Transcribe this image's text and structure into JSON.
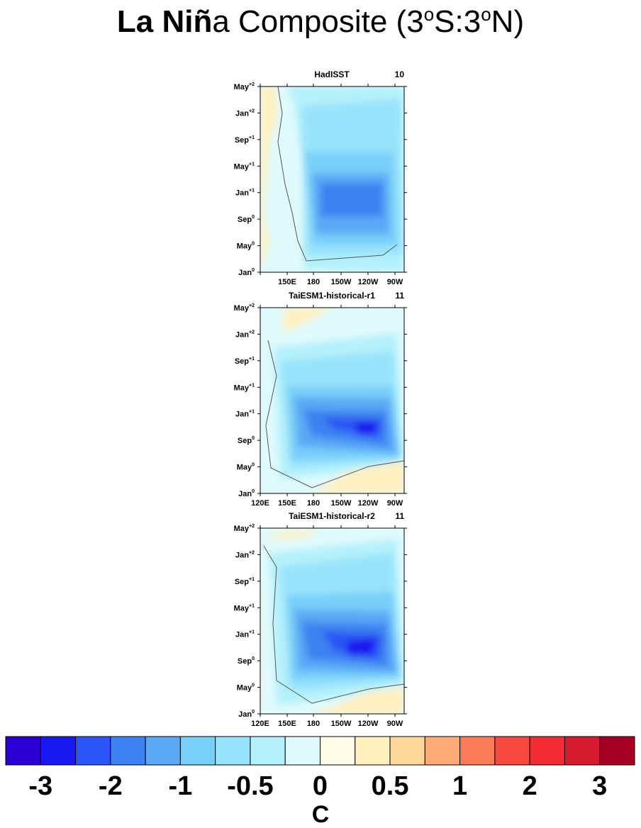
{
  "title": {
    "bold_part": "La Niñ",
    "rest_prefix": "a Composite (3",
    "deg1": "o",
    "mid": "S:3",
    "deg2": "o",
    "suffix": "N)"
  },
  "chart_data": [
    {
      "type": "heatmap",
      "panel": "HadISST",
      "title": "HadISST",
      "count_label": "10",
      "x_ticks": [
        "",
        "150E",
        "180",
        "150W",
        "120W",
        "90W"
      ],
      "y_ticks": [
        {
          "base": "May",
          "sup": "+2"
        },
        {
          "base": "Jan",
          "sup": "+2"
        },
        {
          "base": "Sep",
          "sup": "+1"
        },
        {
          "base": "May",
          "sup": "+1"
        },
        {
          "base": "Jan",
          "sup": "+1"
        },
        {
          "base": "Sep",
          "sup": "0"
        },
        {
          "base": "May",
          "sup": "0"
        },
        {
          "base": "Jan",
          "sup": "0"
        }
      ],
      "cold_core": {
        "lon_center": "150W",
        "month_center": "Nov",
        "peak_value": -1.5
      },
      "contour": 0
    },
    {
      "type": "heatmap",
      "panel": "TaiESM1-historical-r1",
      "title": "TaiESM1-historical-r1",
      "count_label": "11",
      "x_ticks": [
        "120E",
        "150E",
        "180",
        "150W",
        "120W",
        "90W"
      ],
      "y_ticks": [
        {
          "base": "May",
          "sup": "+2"
        },
        {
          "base": "Jan",
          "sup": "+2"
        },
        {
          "base": "Sep",
          "sup": "+1"
        },
        {
          "base": "May",
          "sup": "+1"
        },
        {
          "base": "Jan",
          "sup": "+1"
        },
        {
          "base": "Sep",
          "sup": "0"
        },
        {
          "base": "May",
          "sup": "0"
        },
        {
          "base": "Jan",
          "sup": "0"
        }
      ],
      "cold_core": {
        "lon_center": "130W",
        "month_center": "Nov",
        "peak_value": -2.5
      },
      "contour": 0
    },
    {
      "type": "heatmap",
      "panel": "TaiESM1-historical-r2",
      "title": "TaiESM1-historical-r2",
      "count_label": "11",
      "x_ticks": [
        "120E",
        "150E",
        "180",
        "150W",
        "120W",
        "90W"
      ],
      "y_ticks": [
        {
          "base": "May",
          "sup": "+2"
        },
        {
          "base": "Jan",
          "sup": "+2"
        },
        {
          "base": "Sep",
          "sup": "+1"
        },
        {
          "base": "May",
          "sup": "+1"
        },
        {
          "base": "Jan",
          "sup": "+1"
        },
        {
          "base": "Sep",
          "sup": "0"
        },
        {
          "base": "May",
          "sup": "0"
        },
        {
          "base": "Jan",
          "sup": "0"
        }
      ],
      "cold_core": {
        "lon_center": "130W",
        "month_center": "Nov",
        "peak_value": -2.2
      },
      "contour": 0
    }
  ],
  "colorbar": {
    "unit_label": "C",
    "colors": [
      "#2a00d4",
      "#1a18f0",
      "#2b56f5",
      "#3d82f0",
      "#5aa8f6",
      "#78cff8",
      "#98e3fc",
      "#b3f1fb",
      "#dffbfd",
      "#fffde8",
      "#fff0c0",
      "#fdd89a",
      "#fdaa78",
      "#fb7c58",
      "#f6493f",
      "#f22b35",
      "#d31a2e",
      "#a50024"
    ],
    "labels": [
      "-3",
      "-2",
      "-1",
      "-0.5",
      "0",
      "0.5",
      "1",
      "2",
      "3"
    ]
  }
}
